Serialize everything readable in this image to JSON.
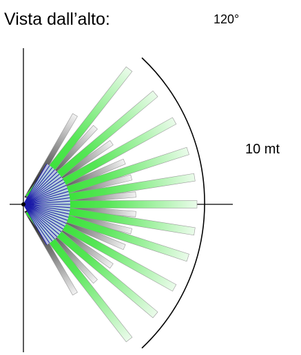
{
  "title": "Vista dall’alto:",
  "angle_label": "120°",
  "range_label": "10 mt",
  "diagram": {
    "field_of_view_deg": 120,
    "colors": {
      "long_beam": "#33dd33",
      "short_beam": "#222222",
      "near_fan": "#1a1aa8",
      "axes": "#000000"
    }
  }
}
